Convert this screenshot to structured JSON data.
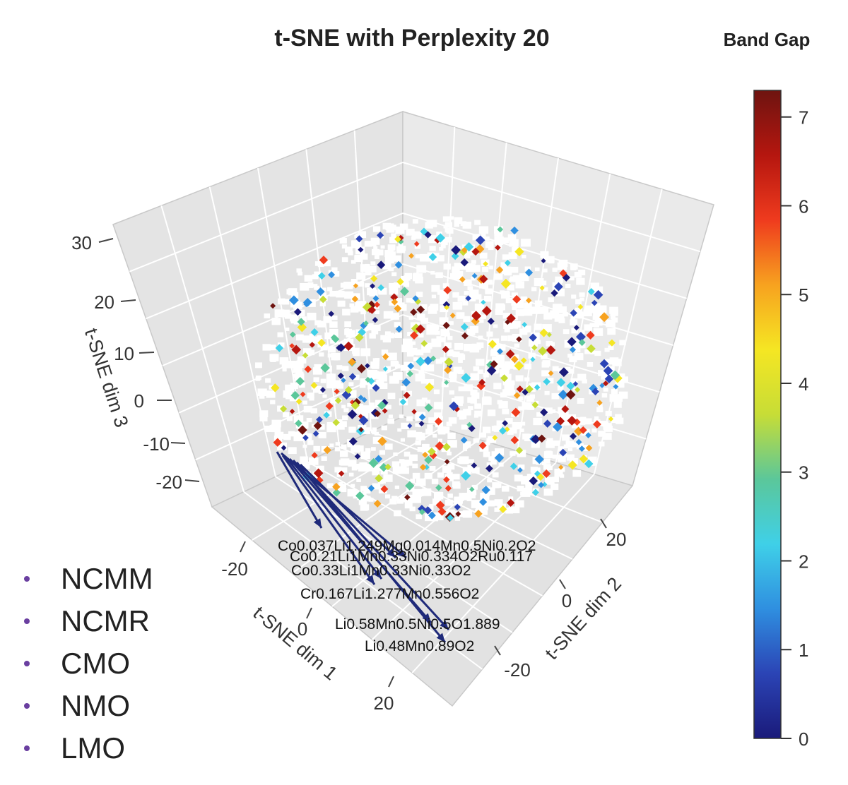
{
  "chart_data": {
    "type": "scatter",
    "title": "t-SNE with Perplexity 20",
    "xlabel": "t-SNE dim 1",
    "ylabel": "t-SNE dim 2",
    "zlabel": "t-SNE dim 3",
    "x_ticks": [
      "-20",
      "0",
      "20"
    ],
    "y_ticks": [
      "-20",
      "0",
      "20"
    ],
    "z_ticks": [
      "30",
      "20",
      "10",
      "0",
      "-10",
      "-20"
    ],
    "colorbar": {
      "title": "Band Gap",
      "ticks": [
        "0",
        "1",
        "2",
        "3",
        "4",
        "5",
        "6",
        "7"
      ],
      "range": [
        0,
        7.3
      ],
      "colors": [
        "#1a1a7a",
        "#2b44b5",
        "#2f8fe0",
        "#3fd0e8",
        "#5bc79a",
        "#c7dd36",
        "#f5e623",
        "#f7a21f",
        "#ef3b1e",
        "#b5160f",
        "#6e1410"
      ]
    },
    "annotations": [
      "Co0.037Li1.249Mg0.014Mn0.5Ni0.2O2",
      "Co0.21Li1Mn0.33Ni0.334O2Ru0.117",
      "Co0.33Li1Mn0.33Ni0.33O2",
      "Cr0.167Li1.277Mn0.556O2",
      "Li0.58Mn0.5Ni0.5O1.889",
      "Li0.48Mn0.89O2"
    ],
    "legend": {
      "color": "#6a3fa0",
      "items": [
        "NCMM",
        "NCMR",
        "CMO",
        "NMO",
        "LMO"
      ]
    }
  }
}
